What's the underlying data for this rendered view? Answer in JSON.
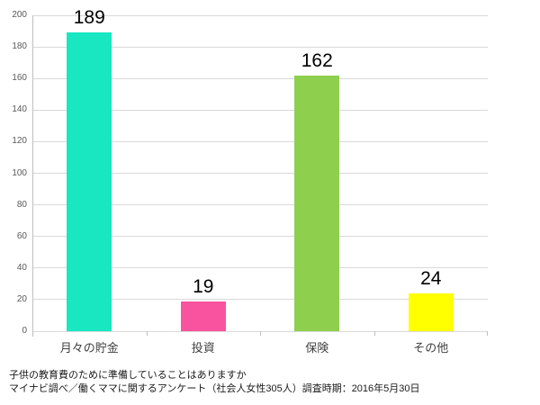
{
  "chart_data": {
    "type": "bar",
    "categories": [
      "月々の貯金",
      "投資",
      "保険",
      "その他"
    ],
    "values": [
      189,
      19,
      162,
      24
    ],
    "bar_colors": [
      "#18e7c2",
      "#f9529e",
      "#8ed04e",
      "#ffff00"
    ],
    "title": "",
    "xlabel": "",
    "ylabel": "",
    "ylim": [
      0,
      200
    ],
    "ytick_step": 20,
    "grid": true,
    "legend": false,
    "value_labels_shown": true
  },
  "footer": {
    "line1": "子供の教育費のために準備していることはありますか",
    "line2": "マイナビ調べ／働くママに関するアンケート（社会人女性305人）調査時期：2016年5月30日"
  },
  "colors": {
    "background": "#ffffff",
    "gridline": "#d9d9d9",
    "axis": "#bfbfbf",
    "y_tick_label": "#595959",
    "category_label": "#404040",
    "value_label": "#000000"
  }
}
